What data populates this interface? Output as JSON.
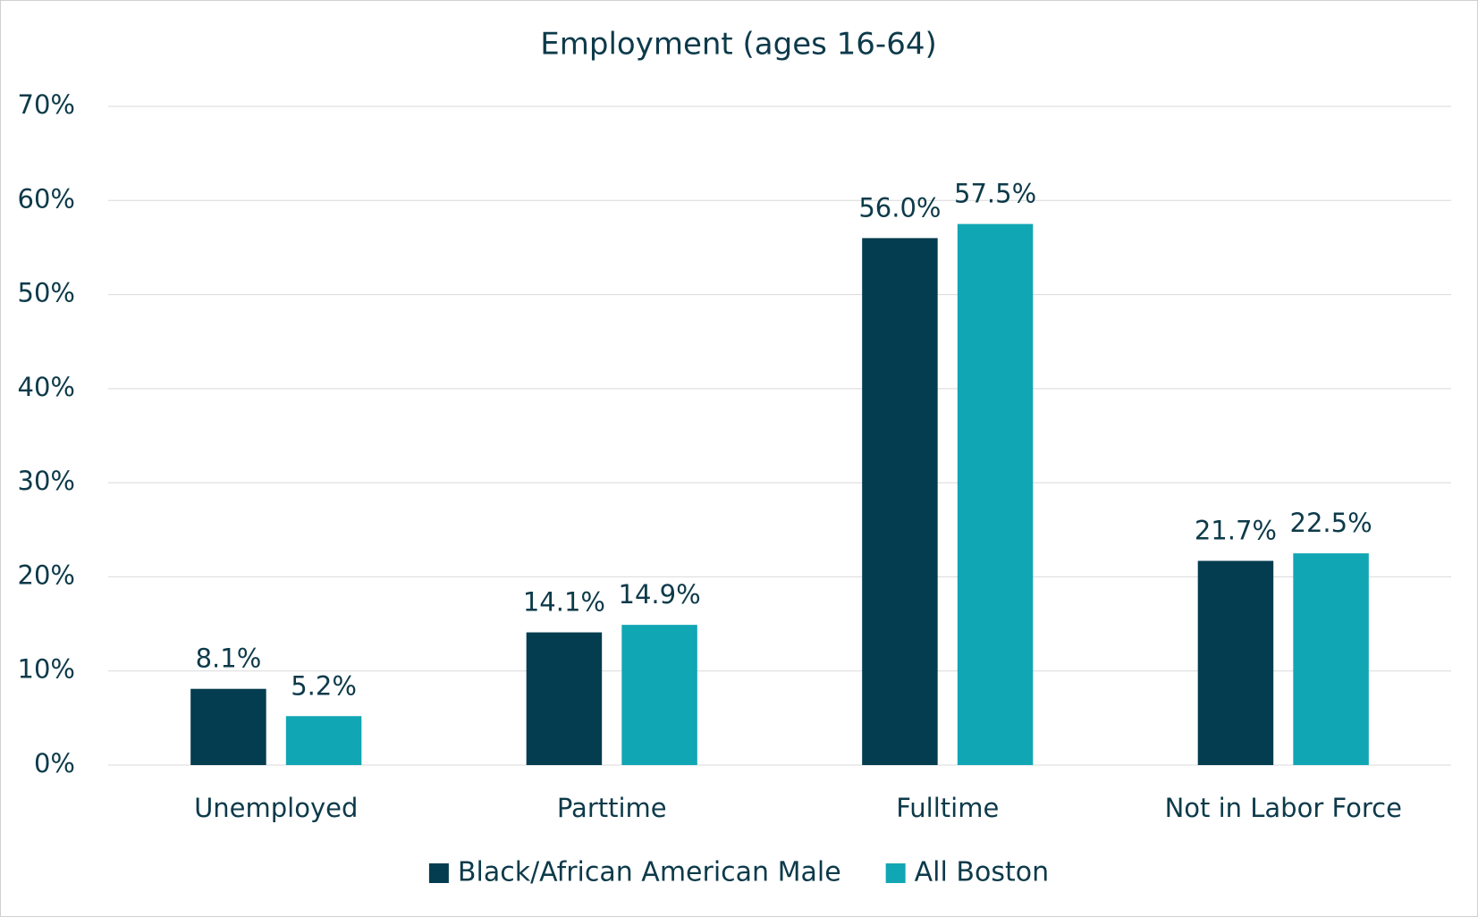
{
  "chart_data": {
    "type": "bar",
    "title": "Employment (ages 16-64)",
    "categories": [
      "Unemployed",
      "Parttime",
      "Fulltime",
      "Not in Labor Force"
    ],
    "series": [
      {
        "name": "Black/African American Male",
        "color": "#033d4f",
        "values": [
          8.1,
          14.1,
          56.0,
          21.7
        ],
        "value_labels": [
          "8.1%",
          "14.1%",
          "56.0%",
          "21.7%"
        ]
      },
      {
        "name": "All Boston",
        "color": "#11a6b4",
        "values": [
          5.2,
          14.9,
          57.5,
          22.5
        ],
        "value_labels": [
          "5.2%",
          "14.9%",
          "57.5%",
          "22.5%"
        ]
      }
    ],
    "ylim": [
      0,
      70
    ],
    "yticks": [
      {
        "value": 0,
        "label": "0%"
      },
      {
        "value": 10,
        "label": "10%"
      },
      {
        "value": 20,
        "label": "20%"
      },
      {
        "value": 30,
        "label": "30%"
      },
      {
        "value": 40,
        "label": "40%"
      },
      {
        "value": 50,
        "label": "50%"
      },
      {
        "value": 60,
        "label": "60%"
      },
      {
        "value": 70,
        "label": "70%"
      }
    ],
    "grid": true,
    "legend": "bottom"
  }
}
